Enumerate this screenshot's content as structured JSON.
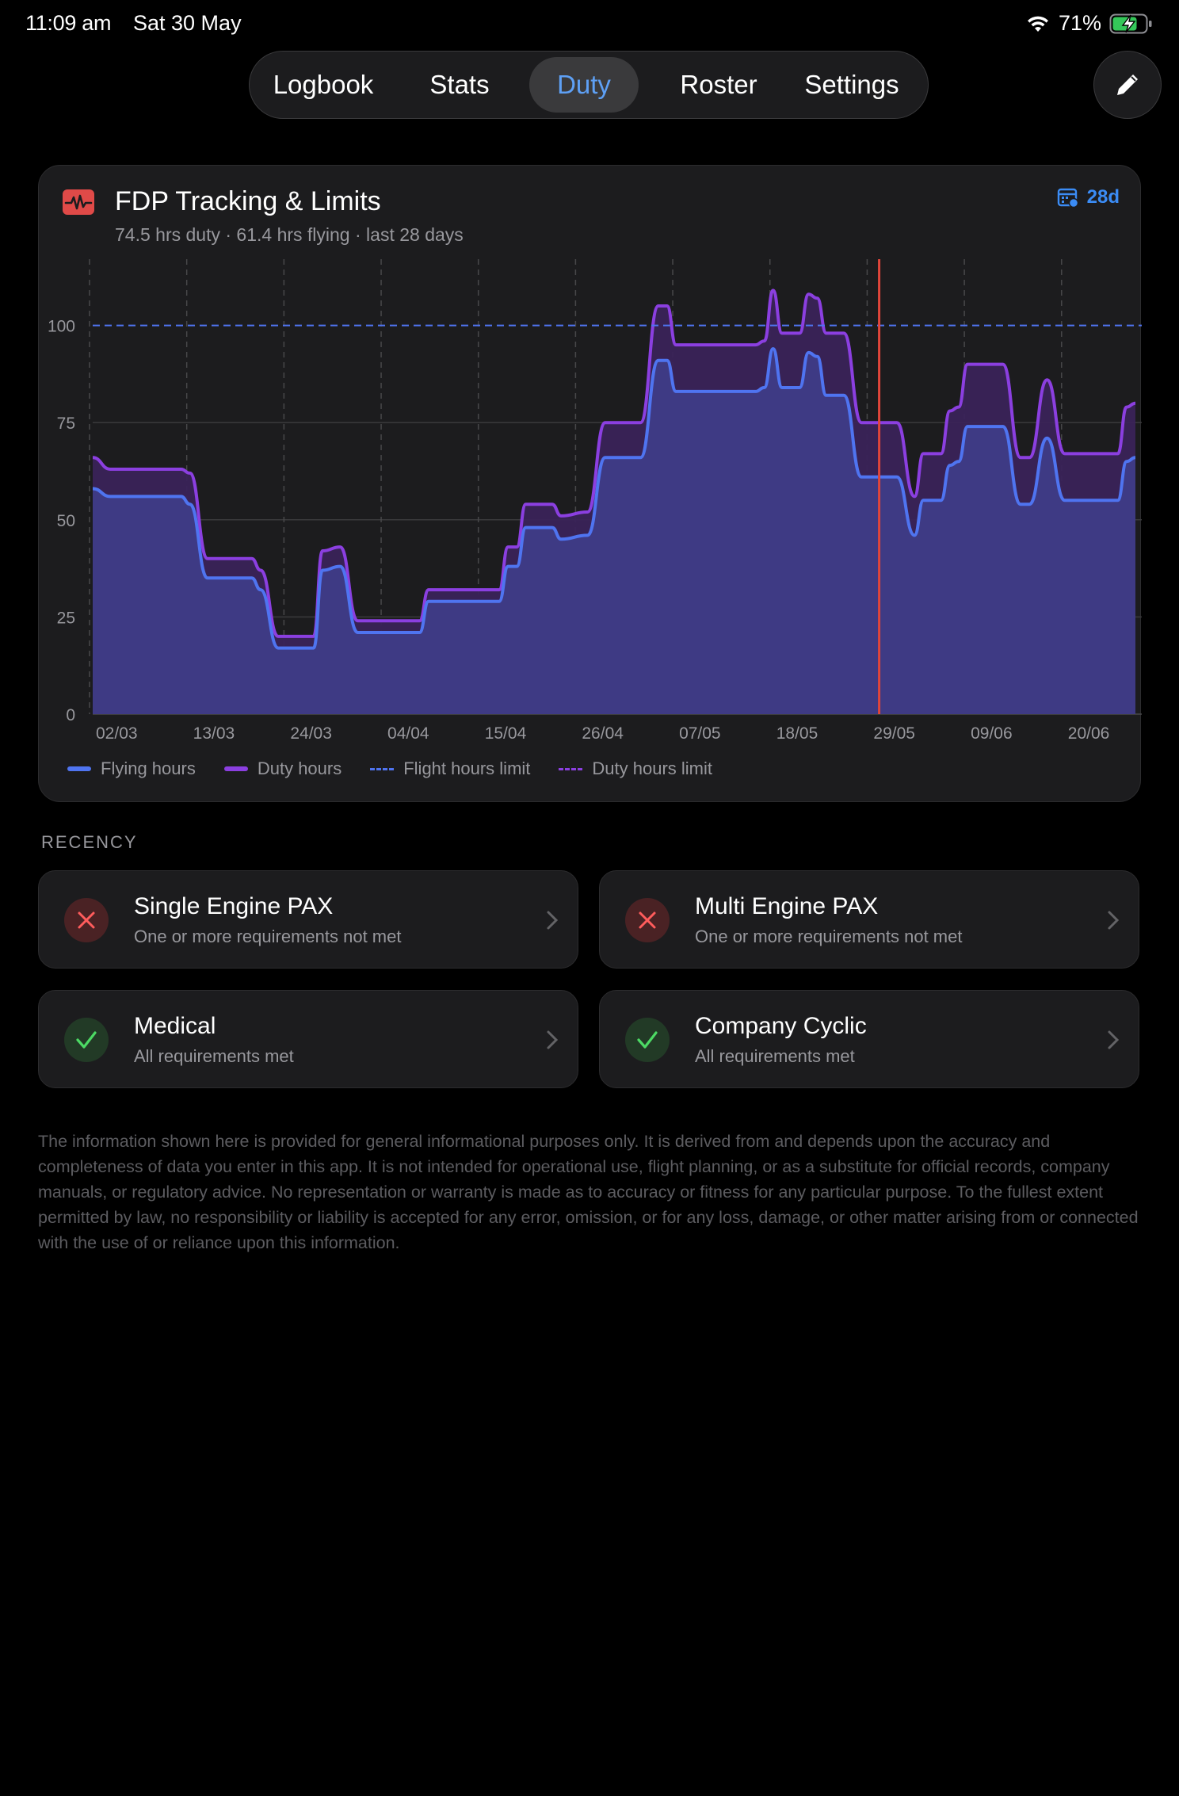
{
  "status_bar": {
    "time": "11:09 am",
    "date": "Sat 30 May",
    "battery": "71%"
  },
  "tabs": [
    {
      "label": "Logbook",
      "active": false
    },
    {
      "label": "Stats",
      "active": false
    },
    {
      "label": "Duty",
      "active": true
    },
    {
      "label": "Roster",
      "active": false
    },
    {
      "label": "Settings",
      "active": false
    }
  ],
  "card": {
    "title": "FDP Tracking & Limits",
    "subtitle": "74.5 hrs duty · 61.4 hrs flying · last 28 days",
    "range_label": "28d"
  },
  "colors": {
    "flying": "#4f74f0",
    "duty": "#8b3fe0",
    "today_marker": "#e0453a",
    "accent": "#3b8cf5"
  },
  "chart_data": {
    "type": "area",
    "title": "",
    "xlabel": "",
    "ylabel": "",
    "x_tick_labels": [
      "02/03",
      "13/03",
      "24/03",
      "04/04",
      "15/04",
      "26/04",
      "07/05",
      "18/05",
      "29/05",
      "09/06",
      "20/06"
    ],
    "x_range": [
      "2026-03-02",
      "2026-06-28"
    ],
    "ylim": [
      0,
      115
    ],
    "y_ticks": [
      0,
      25,
      50,
      75,
      100
    ],
    "today": "2026-05-30",
    "flight_hours_limit": 100,
    "grid": true,
    "legend_position": "bottom",
    "series": [
      {
        "name": "Duty hours",
        "points": [
          [
            "2026-03-02",
            66
          ],
          [
            "2026-03-04",
            63
          ],
          [
            "2026-03-12",
            63
          ],
          [
            "2026-03-13",
            62
          ],
          [
            "2026-03-15",
            40
          ],
          [
            "2026-03-20",
            40
          ],
          [
            "2026-03-21",
            37
          ],
          [
            "2026-03-23",
            20
          ],
          [
            "2026-03-27",
            20
          ],
          [
            "2026-03-28",
            42
          ],
          [
            "2026-03-30",
            43
          ],
          [
            "2026-04-01",
            24
          ],
          [
            "2026-04-08",
            24
          ],
          [
            "2026-04-09",
            32
          ],
          [
            "2026-04-17",
            32
          ],
          [
            "2026-04-18",
            43
          ],
          [
            "2026-04-19",
            43
          ],
          [
            "2026-04-20",
            54
          ],
          [
            "2026-04-23",
            54
          ],
          [
            "2026-04-24",
            51
          ],
          [
            "2026-04-27",
            52
          ],
          [
            "2026-04-29",
            75
          ],
          [
            "2026-05-03",
            75
          ],
          [
            "2026-05-05",
            105
          ],
          [
            "2026-05-06",
            105
          ],
          [
            "2026-05-07",
            95
          ],
          [
            "2026-05-16",
            95
          ],
          [
            "2026-05-17",
            96
          ],
          [
            "2026-05-18",
            109
          ],
          [
            "2026-05-19",
            98
          ],
          [
            "2026-05-21",
            98
          ],
          [
            "2026-05-22",
            108
          ],
          [
            "2026-05-23",
            107
          ],
          [
            "2026-05-24",
            98
          ],
          [
            "2026-05-26",
            98
          ],
          [
            "2026-05-28",
            75
          ],
          [
            "2026-06-01",
            75
          ],
          [
            "2026-06-03",
            56
          ],
          [
            "2026-06-04",
            67
          ],
          [
            "2026-06-06",
            67
          ],
          [
            "2026-06-07",
            78
          ],
          [
            "2026-06-08",
            79
          ],
          [
            "2026-06-09",
            90
          ],
          [
            "2026-06-13",
            90
          ],
          [
            "2026-06-15",
            66
          ],
          [
            "2026-06-16",
            66
          ],
          [
            "2026-06-18",
            86
          ],
          [
            "2026-06-20",
            67
          ],
          [
            "2026-06-26",
            67
          ],
          [
            "2026-06-27",
            79
          ],
          [
            "2026-06-28",
            80
          ]
        ]
      },
      {
        "name": "Flying hours",
        "points": [
          [
            "2026-03-02",
            58
          ],
          [
            "2026-03-04",
            56
          ],
          [
            "2026-03-12",
            56
          ],
          [
            "2026-03-13",
            54
          ],
          [
            "2026-03-15",
            35
          ],
          [
            "2026-03-20",
            35
          ],
          [
            "2026-03-21",
            32
          ],
          [
            "2026-03-23",
            17
          ],
          [
            "2026-03-27",
            17
          ],
          [
            "2026-03-28",
            37
          ],
          [
            "2026-03-30",
            38
          ],
          [
            "2026-04-01",
            21
          ],
          [
            "2026-04-08",
            21
          ],
          [
            "2026-04-09",
            29
          ],
          [
            "2026-04-17",
            29
          ],
          [
            "2026-04-18",
            38
          ],
          [
            "2026-04-19",
            38
          ],
          [
            "2026-04-20",
            48
          ],
          [
            "2026-04-23",
            48
          ],
          [
            "2026-04-24",
            45
          ],
          [
            "2026-04-27",
            46
          ],
          [
            "2026-04-29",
            66
          ],
          [
            "2026-05-03",
            66
          ],
          [
            "2026-05-05",
            91
          ],
          [
            "2026-05-06",
            91
          ],
          [
            "2026-05-07",
            83
          ],
          [
            "2026-05-16",
            83
          ],
          [
            "2026-05-17",
            84
          ],
          [
            "2026-05-18",
            94
          ],
          [
            "2026-05-19",
            84
          ],
          [
            "2026-05-21",
            84
          ],
          [
            "2026-05-22",
            93
          ],
          [
            "2026-05-23",
            92
          ],
          [
            "2026-05-24",
            82
          ],
          [
            "2026-05-26",
            82
          ],
          [
            "2026-05-28",
            61
          ],
          [
            "2026-06-01",
            61
          ],
          [
            "2026-06-03",
            46
          ],
          [
            "2026-06-04",
            55
          ],
          [
            "2026-06-06",
            55
          ],
          [
            "2026-06-07",
            64
          ],
          [
            "2026-06-08",
            65
          ],
          [
            "2026-06-09",
            74
          ],
          [
            "2026-06-13",
            74
          ],
          [
            "2026-06-15",
            54
          ],
          [
            "2026-06-16",
            54
          ],
          [
            "2026-06-18",
            71
          ],
          [
            "2026-06-20",
            55
          ],
          [
            "2026-06-26",
            55
          ],
          [
            "2026-06-27",
            65
          ],
          [
            "2026-06-28",
            66
          ]
        ]
      }
    ],
    "legend": [
      {
        "label": "Flying hours",
        "style": "solid",
        "color": "#4f74f0"
      },
      {
        "label": "Duty hours",
        "style": "solid",
        "color": "#8b3fe0"
      },
      {
        "label": "Flight hours limit",
        "style": "dashed",
        "color": "#4f74f0"
      },
      {
        "label": "Duty hours limit",
        "style": "dashed",
        "color": "#8b3fe0"
      }
    ]
  },
  "recency": {
    "label": "RECENCY",
    "items": [
      {
        "title": "Single Engine PAX",
        "subtitle": "One or more requirements not met",
        "status": "not-met"
      },
      {
        "title": "Multi Engine PAX",
        "subtitle": "One or more requirements not met",
        "status": "not-met"
      },
      {
        "title": "Medical",
        "subtitle": "All requirements met",
        "status": "met"
      },
      {
        "title": "Company Cyclic",
        "subtitle": "All requirements met",
        "status": "met"
      }
    ]
  },
  "disclaimer": "The information shown here is provided for general informational purposes only. It is derived from and depends upon the accuracy and completeness of data you enter in this app. It is not intended for operational use, flight planning, or as a substitute for official records, company manuals, or regulatory advice. No representation or warranty is made as to accuracy or fitness for any particular purpose. To the fullest extent permitted by law, no responsibility or liability is accepted for any error, omission, or for any loss, damage, or other matter arising from or connected with the use of or reliance upon this information."
}
